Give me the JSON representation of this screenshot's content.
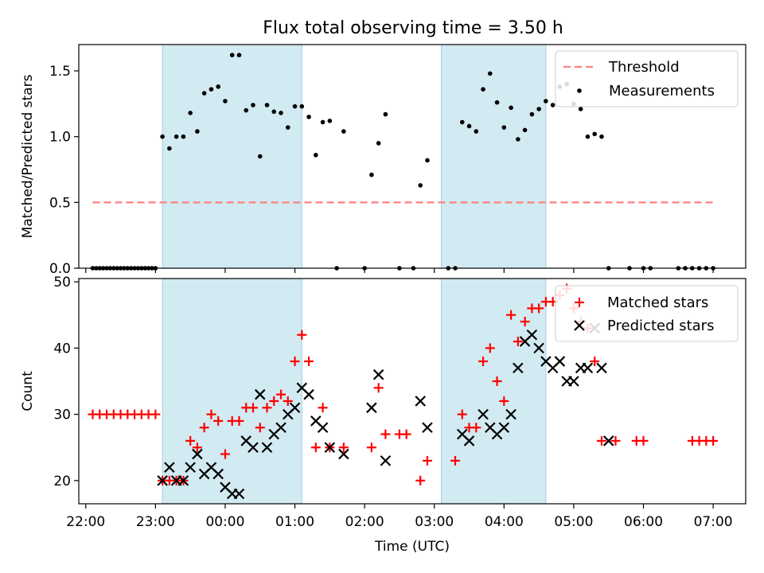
{
  "figure_title": "Flux total observing time = 3.50 h",
  "chart_data": [
    {
      "type": "scatter",
      "title": "Flux total observing time = 3.50 h",
      "xlabel": "",
      "ylabel": "Matched/Predicted stars",
      "xlim": [
        "21:54",
        "07:28"
      ],
      "ylim": [
        0,
        1.7
      ],
      "yticks": [
        "0.0",
        "0.5",
        "1.0",
        "1.5"
      ],
      "grid": false,
      "legend_position": "top-right",
      "shaded_intervals": [
        [
          "23:06",
          "01:06"
        ],
        [
          "03:06",
          "04:36"
        ]
      ],
      "threshold": {
        "name": "Threshold",
        "value": 0.5,
        "x_range": [
          "22:06",
          "07:00"
        ],
        "color": "#ff7f7f"
      },
      "series": [
        {
          "name": "Measurements",
          "color": "#000000",
          "points": [
            [
              "22:06",
              0
            ],
            [
              "22:09",
              0
            ],
            [
              "22:12",
              0
            ],
            [
              "22:15",
              0
            ],
            [
              "22:18",
              0
            ],
            [
              "22:21",
              0
            ],
            [
              "22:24",
              0
            ],
            [
              "22:27",
              0
            ],
            [
              "22:30",
              0
            ],
            [
              "22:33",
              0
            ],
            [
              "22:36",
              0
            ],
            [
              "22:39",
              0
            ],
            [
              "22:42",
              0
            ],
            [
              "22:45",
              0
            ],
            [
              "22:48",
              0
            ],
            [
              "22:51",
              0
            ],
            [
              "22:54",
              0
            ],
            [
              "22:57",
              0
            ],
            [
              "23:00",
              0
            ],
            [
              "23:06",
              1.0
            ],
            [
              "23:12",
              0.91
            ],
            [
              "23:18",
              1.0
            ],
            [
              "23:24",
              1.0
            ],
            [
              "23:30",
              1.18
            ],
            [
              "23:36",
              1.04
            ],
            [
              "23:42",
              1.33
            ],
            [
              "23:48",
              1.36
            ],
            [
              "23:54",
              1.38
            ],
            [
              "00:00",
              1.27
            ],
            [
              "00:06",
              1.62
            ],
            [
              "00:12",
              1.62
            ],
            [
              "00:18",
              1.2
            ],
            [
              "00:24",
              1.24
            ],
            [
              "00:30",
              0.85
            ],
            [
              "00:36",
              1.24
            ],
            [
              "00:42",
              1.19
            ],
            [
              "00:48",
              1.18
            ],
            [
              "00:54",
              1.07
            ],
            [
              "01:00",
              1.23
            ],
            [
              "01:06",
              1.23
            ],
            [
              "01:12",
              1.15
            ],
            [
              "01:18",
              0.86
            ],
            [
              "01:24",
              1.11
            ],
            [
              "01:30",
              1.12
            ],
            [
              "01:36",
              0
            ],
            [
              "01:42",
              1.04
            ],
            [
              "02:00",
              0
            ],
            [
              "02:06",
              0.71
            ],
            [
              "02:12",
              0.95
            ],
            [
              "02:18",
              1.17
            ],
            [
              "02:30",
              0
            ],
            [
              "02:42",
              0
            ],
            [
              "02:48",
              0.63
            ],
            [
              "02:54",
              0.82
            ],
            [
              "03:18",
              0
            ],
            [
              "03:24",
              1.11
            ],
            [
              "03:30",
              1.08
            ],
            [
              "03:36",
              1.04
            ],
            [
              "03:12",
              0
            ],
            [
              "03:42",
              1.36
            ],
            [
              "03:48",
              1.48
            ],
            [
              "03:54",
              1.26
            ],
            [
              "04:00",
              1.07
            ],
            [
              "04:06",
              1.22
            ],
            [
              "04:12",
              0.98
            ],
            [
              "04:18",
              1.05
            ],
            [
              "04:24",
              1.17
            ],
            [
              "04:30",
              1.21
            ],
            [
              "04:36",
              1.27
            ],
            [
              "04:42",
              1.24
            ],
            [
              "04:48",
              1.38
            ],
            [
              "04:54",
              1.4
            ],
            [
              "05:00",
              1.25
            ],
            [
              "05:06",
              1.21
            ],
            [
              "05:12",
              1.0
            ],
            [
              "05:18",
              1.02
            ],
            [
              "05:24",
              1.0
            ],
            [
              "05:30",
              0
            ],
            [
              "05:48",
              0
            ],
            [
              "06:00",
              0
            ],
            [
              "06:06",
              0
            ],
            [
              "06:30",
              0
            ],
            [
              "06:36",
              0
            ],
            [
              "06:42",
              0
            ],
            [
              "06:48",
              0
            ],
            [
              "06:54",
              0
            ],
            [
              "07:00",
              0
            ]
          ]
        }
      ]
    },
    {
      "type": "scatter",
      "title": "",
      "xlabel": "Time (UTC)",
      "ylabel": "Count",
      "xlim": [
        "21:54",
        "07:28"
      ],
      "ylim": [
        16.5,
        50.5
      ],
      "xticks": [
        "22:00",
        "23:00",
        "00:00",
        "01:00",
        "02:00",
        "03:00",
        "04:00",
        "05:00",
        "06:00",
        "07:00"
      ],
      "yticks": [
        "20",
        "30",
        "40",
        "50"
      ],
      "grid": false,
      "legend_position": "top-right",
      "shaded_intervals": [
        [
          "23:06",
          "01:06"
        ],
        [
          "03:06",
          "04:36"
        ]
      ],
      "series": [
        {
          "name": "Matched stars",
          "marker": "+",
          "color": "#ff0000",
          "points": [
            [
              "22:06",
              30
            ],
            [
              "22:12",
              30
            ],
            [
              "22:18",
              30
            ],
            [
              "22:24",
              30
            ],
            [
              "22:30",
              30
            ],
            [
              "22:36",
              30
            ],
            [
              "22:42",
              30
            ],
            [
              "22:48",
              30
            ],
            [
              "22:54",
              30
            ],
            [
              "23:00",
              30
            ],
            [
              "23:06",
              20
            ],
            [
              "23:12",
              20
            ],
            [
              "23:18",
              20
            ],
            [
              "23:24",
              20
            ],
            [
              "23:30",
              26
            ],
            [
              "23:36",
              25
            ],
            [
              "23:42",
              28
            ],
            [
              "23:48",
              30
            ],
            [
              "23:54",
              29
            ],
            [
              "00:00",
              24
            ],
            [
              "00:06",
              29
            ],
            [
              "00:12",
              29
            ],
            [
              "00:18",
              31
            ],
            [
              "00:24",
              31
            ],
            [
              "00:30",
              28
            ],
            [
              "00:36",
              31
            ],
            [
              "00:42",
              32
            ],
            [
              "00:48",
              33
            ],
            [
              "00:54",
              32
            ],
            [
              "01:00",
              38
            ],
            [
              "01:06",
              42
            ],
            [
              "01:12",
              38
            ],
            [
              "01:18",
              25
            ],
            [
              "01:24",
              31
            ],
            [
              "01:30",
              25
            ],
            [
              "01:42",
              25
            ],
            [
              "02:06",
              25
            ],
            [
              "02:12",
              34
            ],
            [
              "02:18",
              27
            ],
            [
              "02:30",
              27
            ],
            [
              "02:36",
              27
            ],
            [
              "02:48",
              20
            ],
            [
              "02:54",
              23
            ],
            [
              "03:18",
              23
            ],
            [
              "03:24",
              30
            ],
            [
              "03:30",
              28
            ],
            [
              "03:36",
              28
            ],
            [
              "03:42",
              38
            ],
            [
              "03:48",
              40
            ],
            [
              "03:54",
              35
            ],
            [
              "04:00",
              32
            ],
            [
              "04:06",
              45
            ],
            [
              "04:12",
              41
            ],
            [
              "04:18",
              44
            ],
            [
              "04:24",
              46
            ],
            [
              "04:30",
              46
            ],
            [
              "04:36",
              47
            ],
            [
              "04:42",
              47
            ],
            [
              "04:48",
              48
            ],
            [
              "04:54",
              49
            ],
            [
              "05:00",
              46
            ],
            [
              "05:06",
              44
            ],
            [
              "05:12",
              43
            ],
            [
              "05:18",
              38
            ],
            [
              "05:24",
              26
            ],
            [
              "05:36",
              26
            ],
            [
              "05:54",
              26
            ],
            [
              "06:00",
              26
            ],
            [
              "06:42",
              26
            ],
            [
              "06:48",
              26
            ],
            [
              "06:54",
              26
            ],
            [
              "07:00",
              26
            ]
          ]
        },
        {
          "name": "Predicted stars",
          "marker": "x",
          "color": "#000000",
          "points": [
            [
              "23:06",
              20
            ],
            [
              "23:12",
              22
            ],
            [
              "23:18",
              20
            ],
            [
              "23:24",
              20
            ],
            [
              "23:30",
              22
            ],
            [
              "23:36",
              24
            ],
            [
              "23:42",
              21
            ],
            [
              "23:48",
              22
            ],
            [
              "23:54",
              21
            ],
            [
              "00:00",
              19
            ],
            [
              "00:06",
              18
            ],
            [
              "00:12",
              18
            ],
            [
              "00:18",
              26
            ],
            [
              "00:24",
              25
            ],
            [
              "00:30",
              33
            ],
            [
              "00:36",
              25
            ],
            [
              "00:42",
              27
            ],
            [
              "00:48",
              28
            ],
            [
              "00:54",
              30
            ],
            [
              "01:00",
              31
            ],
            [
              "01:06",
              34
            ],
            [
              "01:12",
              33
            ],
            [
              "01:18",
              29
            ],
            [
              "01:24",
              28
            ],
            [
              "01:30",
              25
            ],
            [
              "01:42",
              24
            ],
            [
              "02:06",
              31
            ],
            [
              "02:12",
              36
            ],
            [
              "02:18",
              23
            ],
            [
              "02:48",
              32
            ],
            [
              "02:54",
              28
            ],
            [
              "03:24",
              27
            ],
            [
              "03:30",
              26
            ],
            [
              "03:42",
              30
            ],
            [
              "03:48",
              28
            ],
            [
              "03:54",
              27
            ],
            [
              "04:00",
              28
            ],
            [
              "04:06",
              30
            ],
            [
              "04:12",
              37
            ],
            [
              "04:18",
              41
            ],
            [
              "04:24",
              42
            ],
            [
              "04:30",
              40
            ],
            [
              "04:36",
              38
            ],
            [
              "04:42",
              37
            ],
            [
              "04:48",
              38
            ],
            [
              "04:54",
              35
            ],
            [
              "05:00",
              35
            ],
            [
              "05:06",
              37
            ],
            [
              "05:12",
              37
            ],
            [
              "05:18",
              43
            ],
            [
              "05:24",
              37
            ],
            [
              "05:30",
              26
            ]
          ]
        }
      ]
    }
  ]
}
